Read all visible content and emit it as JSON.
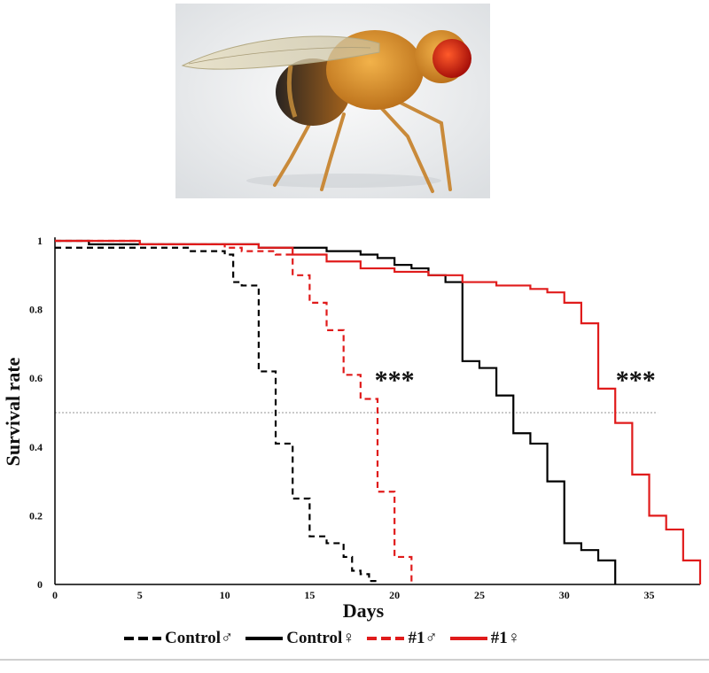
{
  "photo": {
    "subject": "fruit fly (Drosophila)",
    "icon": "fruit-fly-illustration"
  },
  "chart_data": {
    "type": "line",
    "subtype": "step (Kaplan-Meier survival curves)",
    "title": "",
    "xlabel": "Days",
    "ylabel": "Survival rate",
    "xlim": [
      0,
      38
    ],
    "ylim": [
      0,
      1
    ],
    "xticks": [
      0,
      5,
      10,
      15,
      20,
      25,
      30,
      35
    ],
    "yticks": [
      0,
      0.2,
      0.4,
      0.6,
      0.8,
      1
    ],
    "ytick_labels": [
      "0",
      "0.2",
      "0.4",
      "0.6",
      "0.8",
      "1"
    ],
    "grid": false,
    "reference_line": {
      "y": 0.5,
      "style": "dotted",
      "color": "#aaaaaa"
    },
    "annotations": [
      {
        "text": "***",
        "x": 20,
        "y": 0.6
      },
      {
        "text": "***",
        "x": 34.2,
        "y": 0.6
      }
    ],
    "legend_position": "bottom",
    "series": [
      {
        "name": "Control♂",
        "color": "#000000",
        "dash": "dashed",
        "x": [
          0,
          3,
          7,
          8,
          9,
          10,
          10.5,
          11,
          12,
          13,
          14,
          15,
          16,
          17,
          17.5,
          18,
          18.5,
          19
        ],
        "y": [
          0.98,
          0.98,
          0.98,
          0.97,
          0.97,
          0.96,
          0.88,
          0.87,
          0.62,
          0.41,
          0.25,
          0.14,
          0.12,
          0.08,
          0.04,
          0.03,
          0.01,
          0
        ]
      },
      {
        "name": "Control♀",
        "color": "#000000",
        "dash": "solid",
        "x": [
          0,
          2,
          8,
          11,
          12,
          14,
          15,
          16,
          18,
          19,
          20,
          21,
          22,
          23,
          24,
          25,
          26,
          27,
          28,
          29,
          30,
          31,
          32,
          33
        ],
        "y": [
          1.0,
          0.99,
          0.99,
          0.99,
          0.98,
          0.98,
          0.98,
          0.97,
          0.96,
          0.95,
          0.93,
          0.92,
          0.9,
          0.88,
          0.65,
          0.63,
          0.55,
          0.44,
          0.41,
          0.3,
          0.12,
          0.1,
          0.07,
          0
        ]
      },
      {
        "name": "#1♂",
        "color": "#e01b1b",
        "dash": "dashed",
        "x": [
          0,
          5,
          10,
          11,
          12,
          13,
          14,
          15,
          16,
          17,
          18,
          19,
          20,
          21
        ],
        "y": [
          1.0,
          0.99,
          0.98,
          0.97,
          0.97,
          0.96,
          0.9,
          0.82,
          0.74,
          0.61,
          0.54,
          0.27,
          0.08,
          0
        ]
      },
      {
        "name": "#1♀",
        "color": "#e01b1b",
        "dash": "solid",
        "x": [
          0,
          5,
          10,
          12,
          14,
          16,
          18,
          20,
          22,
          24,
          26,
          27,
          28,
          29,
          30,
          31,
          32,
          33,
          34,
          35,
          36,
          37,
          38
        ],
        "y": [
          1.0,
          0.99,
          0.99,
          0.98,
          0.96,
          0.94,
          0.92,
          0.91,
          0.9,
          0.88,
          0.87,
          0.87,
          0.86,
          0.85,
          0.82,
          0.76,
          0.57,
          0.47,
          0.32,
          0.2,
          0.16,
          0.07,
          0
        ]
      }
    ]
  }
}
